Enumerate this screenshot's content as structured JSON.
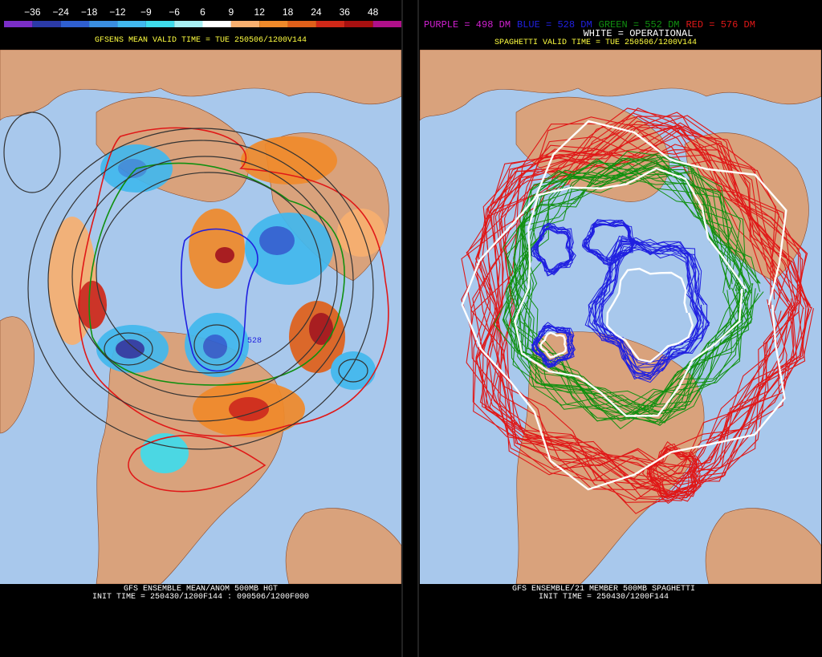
{
  "left": {
    "colorbar": {
      "labels": [
        "−36",
        "−24",
        "−18",
        "−12",
        "−9",
        "−6",
        "6",
        "9",
        "12",
        "18",
        "24",
        "36",
        "48"
      ],
      "colors": [
        "#7a2ec8",
        "#2b3aa8",
        "#2f5fd0",
        "#3a8ee0",
        "#42b8ee",
        "#3fdcec",
        "#a8f0f4",
        "#ffffff",
        "#f8b070",
        "#f08a2a",
        "#e0601a",
        "#d02818",
        "#a81010",
        "#b0108a"
      ]
    },
    "title": "GFSENS MEAN VALID TIME = TUE 250506/1200V144",
    "contour_label": "528",
    "footer": [
      "GFS ENSEMBLE MEAN/ANOM 500MB HGT",
      "INIT TIME = 250430/1200F144 : 090506/1200F000"
    ]
  },
  "right": {
    "legend": [
      {
        "text": "PURPLE = 498 DM",
        "color": "#d020d0"
      },
      {
        "text": "BLUE = 528 DM",
        "color": "#2020e0"
      },
      {
        "text": "GREEN = 552 DM",
        "color": "#109010"
      },
      {
        "text": "RED = 576 DM",
        "color": "#e01818"
      }
    ],
    "operational": "WHITE = OPERATIONAL",
    "title": "SPAGHETTI VALID TIME = TUE 250506/1200V144",
    "footer": [
      "GFS ENSEMBLE/21 MEMBER 500MB SPAGHETTI",
      "INIT TIME = 250430/1200F144"
    ]
  }
}
